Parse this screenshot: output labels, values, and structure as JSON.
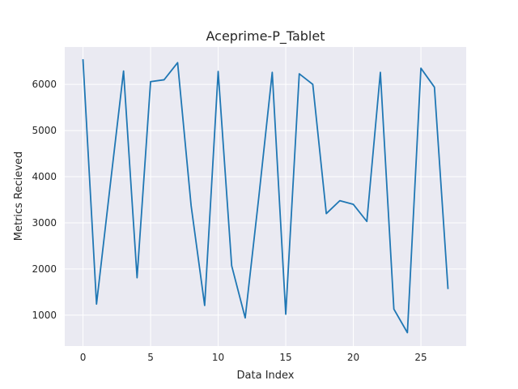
{
  "chart_data": {
    "type": "line",
    "title": "Aceprime-P_Tablet",
    "xlabel": "Data Index",
    "ylabel": "Metrics Recieved",
    "xlim": [
      -1.35,
      28.35
    ],
    "ylim": [
      330,
      6810
    ],
    "xticks": [
      0,
      5,
      10,
      15,
      20,
      25
    ],
    "yticks": [
      1000,
      2000,
      3000,
      4000,
      5000,
      6000
    ],
    "grid": true,
    "colors": {
      "background": "#eaeaf2",
      "grid": "#ffffff",
      "line": "#1f77b4"
    },
    "series": [
      {
        "x": [
          0,
          1,
          2,
          3,
          4,
          5,
          6,
          7,
          8,
          9,
          10,
          11,
          12,
          13,
          14,
          15,
          16,
          17,
          18,
          19,
          20,
          21,
          22,
          23,
          24,
          25,
          26,
          27
        ],
        "values": [
          6530,
          1240,
          3780,
          6290,
          1810,
          6060,
          6100,
          6470,
          3370,
          1210,
          6280,
          2070,
          940,
          3540,
          6260,
          1020,
          6230,
          6000,
          3200,
          3480,
          3400,
          3030,
          6260,
          1130,
          620,
          6350,
          5940,
          1580
        ]
      }
    ]
  }
}
